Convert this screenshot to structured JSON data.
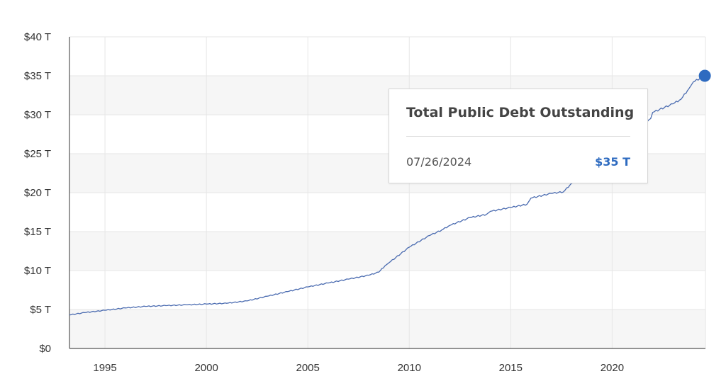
{
  "colors": {
    "line": "#4a6bb0",
    "marker": "#2e6bc0",
    "band": "#f6f6f6",
    "grid": "#e6e6e6",
    "axis": "#555555",
    "value_text": "#2e6bc0"
  },
  "tooltip": {
    "title": "Total Public Debt Outstanding",
    "date": "07/26/2024",
    "value": "$35 T"
  },
  "chart_data": {
    "type": "line",
    "title": "",
    "xlabel": "",
    "ylabel": "",
    "xlim": [
      1993.25,
      2024.6
    ],
    "ylim": [
      0,
      40
    ],
    "grid": true,
    "x_ticks": [
      1995,
      2000,
      2005,
      2010,
      2015,
      2020
    ],
    "x_tick_labels": [
      "1995",
      "2000",
      "2005",
      "2010",
      "2015",
      "2020"
    ],
    "y_ticks": [
      0,
      5,
      10,
      15,
      20,
      25,
      30,
      35,
      40
    ],
    "y_tick_labels": [
      "$0",
      "$5 T",
      "$10 T",
      "$15 T",
      "$20 T",
      "$25 T",
      "$30 T",
      "$35 T",
      "$40 T"
    ],
    "series": [
      {
        "x": [
          1993.25,
          1994,
          1995,
          1996,
          1997,
          1998,
          1999,
          2000,
          2001,
          2002,
          2003,
          2004,
          2005,
          2006,
          2007,
          2008,
          2008.5,
          2008.8,
          2009,
          2010,
          2011,
          2011.6,
          2012,
          2013,
          2013.8,
          2014,
          2015,
          2015.8,
          2016,
          2017,
          2017.6,
          2018,
          2018.7,
          2019,
          2019.8,
          2020,
          2020.4,
          2021,
          2021.9,
          2022,
          2023,
          2023.4,
          2023.8,
          2024,
          2024.57
        ],
        "y": [
          4.3,
          4.6,
          4.9,
          5.2,
          5.4,
          5.5,
          5.6,
          5.7,
          5.8,
          6.1,
          6.7,
          7.3,
          7.9,
          8.4,
          8.9,
          9.4,
          9.8,
          10.6,
          11.0,
          13.0,
          14.5,
          15.2,
          15.8,
          16.8,
          17.2,
          17.6,
          18.1,
          18.5,
          19.3,
          19.9,
          20.1,
          21.2,
          21.7,
          22.6,
          23.0,
          24.5,
          26.3,
          28.0,
          29.5,
          30.3,
          31.4,
          32.0,
          33.4,
          34.2,
          35.0
        ]
      }
    ],
    "highlight": {
      "x": 2024.57,
      "y": 35.0
    }
  }
}
